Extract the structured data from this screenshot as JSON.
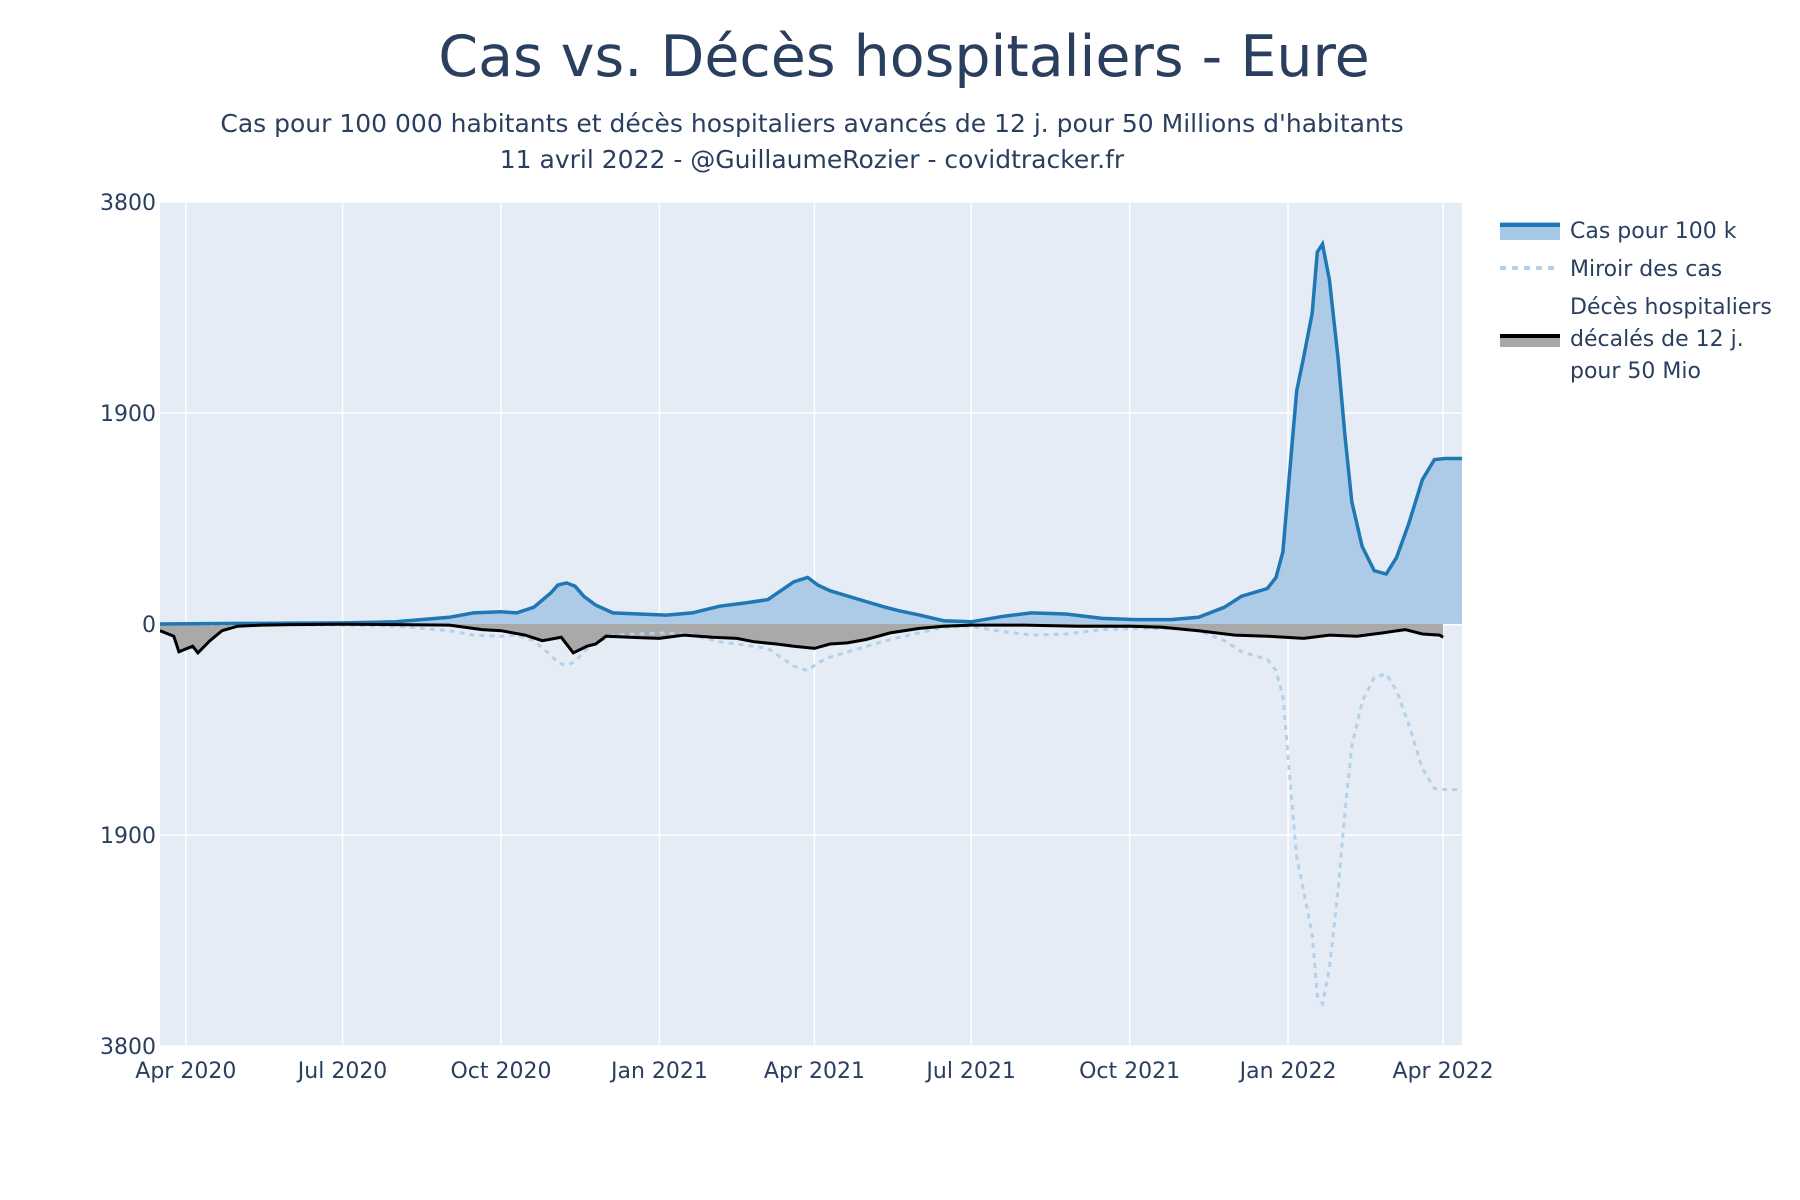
{
  "chart_data": {
    "type": "area",
    "title": "Cas vs. Décès hospitaliers - Eure",
    "subtitle_lines": [
      "Cas pour 100 000 habitants et décès hospitaliers avancés de 12 j. pour 50 Millions d'habitants",
      "11 avril 2022 - @GuillaumeRozier - covidtracker.fr"
    ],
    "xlabel": "",
    "ylabel": "",
    "y_ticks": [
      {
        "value": 3800,
        "label": "3800"
      },
      {
        "value": 1900,
        "label": "1900"
      },
      {
        "value": 0,
        "label": "0"
      },
      {
        "value": -1900,
        "label": "1900"
      },
      {
        "value": -3800,
        "label": "3800"
      }
    ],
    "ylim": [
      -3800,
      3800
    ],
    "xlim": [
      "2020-03-17",
      "2022-04-12"
    ],
    "x_ticks": [
      {
        "date": "2020-04-01",
        "label": "Apr 2020"
      },
      {
        "date": "2020-07-01",
        "label": "Jul 2020"
      },
      {
        "date": "2020-10-01",
        "label": "Oct 2020"
      },
      {
        "date": "2021-01-01",
        "label": "Jan 2021"
      },
      {
        "date": "2021-04-01",
        "label": "Apr 2021"
      },
      {
        "date": "2021-07-01",
        "label": "Jul 2021"
      },
      {
        "date": "2021-10-01",
        "label": "Oct 2021"
      },
      {
        "date": "2022-01-01",
        "label": "Jan 2022"
      },
      {
        "date": "2022-04-01",
        "label": "Apr 2022"
      }
    ],
    "grid": true,
    "legend_position": "right",
    "colors": {
      "plot_bg": "#e5ecf6",
      "cases_line": "#1f77b4",
      "cases_fill": "#a6c8e6",
      "mirror_line": "#b3d1ea",
      "deaths_line": "#000000",
      "deaths_fill": "#a9a9a9",
      "grid": "#ffffff"
    },
    "series": [
      {
        "name": "Cas pour 100 k",
        "key": "cases",
        "points": [
          [
            "2020-03-17",
            0
          ],
          [
            "2020-05-01",
            5
          ],
          [
            "2020-07-01",
            10
          ],
          [
            "2020-08-01",
            20
          ],
          [
            "2020-09-01",
            60
          ],
          [
            "2020-09-15",
            100
          ],
          [
            "2020-10-01",
            110
          ],
          [
            "2020-10-10",
            100
          ],
          [
            "2020-10-20",
            150
          ],
          [
            "2020-10-30",
            280
          ],
          [
            "2020-11-03",
            350
          ],
          [
            "2020-11-08",
            370
          ],
          [
            "2020-11-13",
            340
          ],
          [
            "2020-11-18",
            250
          ],
          [
            "2020-11-25",
            170
          ],
          [
            "2020-12-05",
            100
          ],
          [
            "2020-12-20",
            90
          ],
          [
            "2021-01-05",
            80
          ],
          [
            "2021-01-20",
            100
          ],
          [
            "2021-02-05",
            160
          ],
          [
            "2021-02-20",
            190
          ],
          [
            "2021-03-05",
            220
          ],
          [
            "2021-03-20",
            380
          ],
          [
            "2021-03-28",
            420
          ],
          [
            "2021-04-03",
            350
          ],
          [
            "2021-04-10",
            300
          ],
          [
            "2021-04-25",
            230
          ],
          [
            "2021-05-10",
            160
          ],
          [
            "2021-05-20",
            120
          ],
          [
            "2021-06-01",
            80
          ],
          [
            "2021-06-15",
            30
          ],
          [
            "2021-07-01",
            20
          ],
          [
            "2021-07-20",
            70
          ],
          [
            "2021-08-05",
            100
          ],
          [
            "2021-08-25",
            90
          ],
          [
            "2021-09-15",
            50
          ],
          [
            "2021-10-05",
            40
          ],
          [
            "2021-10-25",
            40
          ],
          [
            "2021-11-10",
            60
          ],
          [
            "2021-11-25",
            150
          ],
          [
            "2021-12-05",
            250
          ],
          [
            "2021-12-20",
            320
          ],
          [
            "2021-12-25",
            420
          ],
          [
            "2021-12-29",
            650
          ],
          [
            "2022-01-02",
            1380
          ],
          [
            "2022-01-06",
            2100
          ],
          [
            "2022-01-10",
            2400
          ],
          [
            "2022-01-15",
            2800
          ],
          [
            "2022-01-18",
            3350
          ],
          [
            "2022-01-21",
            3420
          ],
          [
            "2022-01-25",
            3100
          ],
          [
            "2022-01-30",
            2400
          ],
          [
            "2022-02-03",
            1700
          ],
          [
            "2022-02-07",
            1100
          ],
          [
            "2022-02-13",
            700
          ],
          [
            "2022-02-20",
            480
          ],
          [
            "2022-02-27",
            450
          ],
          [
            "2022-03-05",
            600
          ],
          [
            "2022-03-12",
            900
          ],
          [
            "2022-03-20",
            1300
          ],
          [
            "2022-03-27",
            1480
          ],
          [
            "2022-04-02",
            1490
          ],
          [
            "2022-04-12",
            1490
          ]
        ]
      },
      {
        "name": "Miroir des cas",
        "key": "mirror"
      },
      {
        "name": "Décès hospitaliers décalés de 12 j. pour 50 Mio",
        "legend_lines": [
          "Décès hospitaliers",
          "décalés de 12 j.",
          "pour 50 Mio"
        ],
        "key": "deaths",
        "points": [
          [
            "2020-03-17",
            -60
          ],
          [
            "2020-03-25",
            -110
          ],
          [
            "2020-03-28",
            -250
          ],
          [
            "2020-04-05",
            -200
          ],
          [
            "2020-04-08",
            -260
          ],
          [
            "2020-04-15",
            -150
          ],
          [
            "2020-04-22",
            -60
          ],
          [
            "2020-05-01",
            -20
          ],
          [
            "2020-05-15",
            -10
          ],
          [
            "2020-06-01",
            -5
          ],
          [
            "2020-07-01",
            -2
          ],
          [
            "2020-08-01",
            -5
          ],
          [
            "2020-09-01",
            -10
          ],
          [
            "2020-09-20",
            -50
          ],
          [
            "2020-10-01",
            -60
          ],
          [
            "2020-10-15",
            -100
          ],
          [
            "2020-10-25",
            -150
          ],
          [
            "2020-11-05",
            -120
          ],
          [
            "2020-11-12",
            -260
          ],
          [
            "2020-11-20",
            -200
          ],
          [
            "2020-11-25",
            -180
          ],
          [
            "2020-12-01",
            -110
          ],
          [
            "2020-12-15",
            -120
          ],
          [
            "2021-01-01",
            -130
          ],
          [
            "2021-01-15",
            -100
          ],
          [
            "2021-02-01",
            -120
          ],
          [
            "2021-02-15",
            -130
          ],
          [
            "2021-02-25",
            -160
          ],
          [
            "2021-03-10",
            -180
          ],
          [
            "2021-03-20",
            -200
          ],
          [
            "2021-04-01",
            -220
          ],
          [
            "2021-04-10",
            -180
          ],
          [
            "2021-04-20",
            -170
          ],
          [
            "2021-05-01",
            -140
          ],
          [
            "2021-05-15",
            -80
          ],
          [
            "2021-06-01",
            -40
          ],
          [
            "2021-06-15",
            -20
          ],
          [
            "2021-07-01",
            -10
          ],
          [
            "2021-08-01",
            -10
          ],
          [
            "2021-09-01",
            -20
          ],
          [
            "2021-10-01",
            -20
          ],
          [
            "2021-10-20",
            -30
          ],
          [
            "2021-11-10",
            -60
          ],
          [
            "2021-12-01",
            -100
          ],
          [
            "2021-12-20",
            -110
          ],
          [
            "2022-01-10",
            -130
          ],
          [
            "2022-01-25",
            -100
          ],
          [
            "2022-02-10",
            -110
          ],
          [
            "2022-02-25",
            -80
          ],
          [
            "2022-03-10",
            -50
          ],
          [
            "2022-03-20",
            -90
          ],
          [
            "2022-03-30",
            -100
          ],
          [
            "2022-04-01",
            -120
          ]
        ]
      }
    ]
  }
}
